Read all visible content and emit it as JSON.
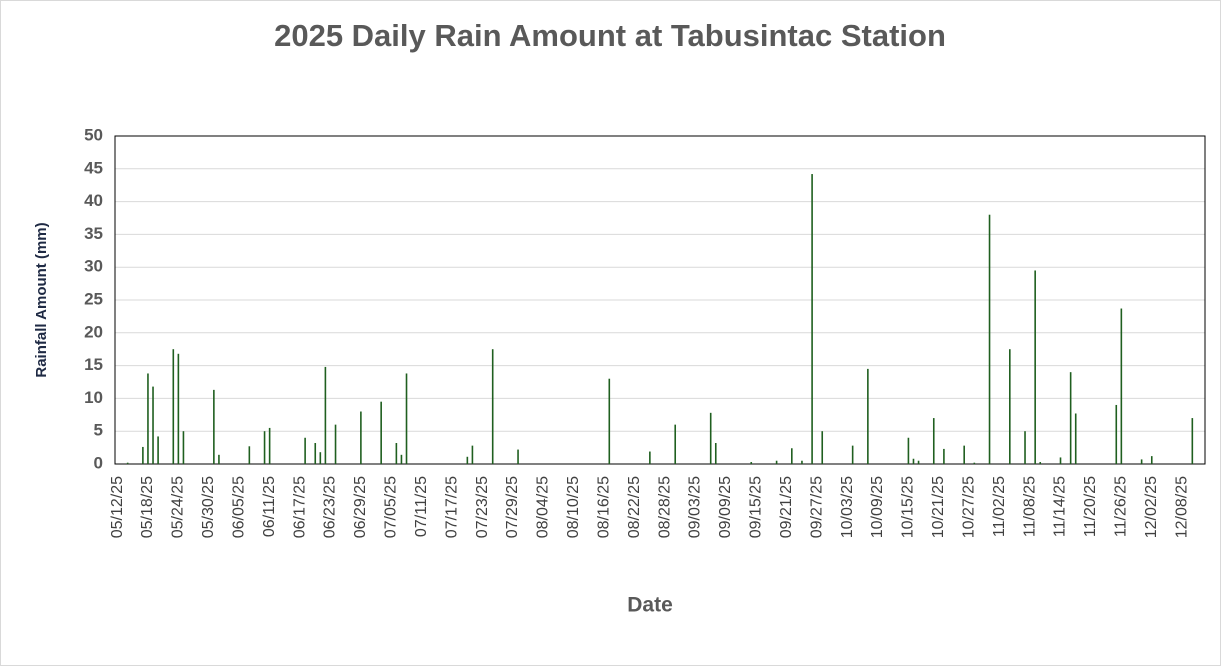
{
  "chart_data": {
    "type": "bar",
    "title": "2025 Daily Rain Amount at Tabusintac Station",
    "x_label": "Date",
    "y_label": "Rainfall Amount (mm)",
    "color": "#1f5f1f",
    "grid": true,
    "ylim": [
      0,
      50
    ],
    "yticks": [
      0,
      5,
      10,
      15,
      20,
      25,
      30,
      35,
      40,
      45,
      50
    ],
    "categories": [
      "05/12/25",
      null,
      null,
      null,
      null,
      null,
      "05/18/25",
      null,
      null,
      null,
      null,
      null,
      "05/24/25",
      null,
      null,
      null,
      null,
      null,
      "05/30/25",
      null,
      null,
      null,
      null,
      null,
      "06/05/25",
      null,
      null,
      null,
      null,
      null,
      "06/11/25",
      null,
      null,
      null,
      null,
      null,
      "06/17/25",
      null,
      null,
      null,
      null,
      null,
      "06/23/25",
      null,
      null,
      null,
      null,
      null,
      "06/29/25",
      null,
      null,
      null,
      null,
      null,
      "07/05/25",
      null,
      null,
      null,
      null,
      null,
      "07/11/25",
      null,
      null,
      null,
      null,
      null,
      "07/17/25",
      null,
      null,
      null,
      null,
      null,
      "07/23/25",
      null,
      null,
      null,
      null,
      null,
      "07/29/25",
      null,
      null,
      null,
      null,
      null,
      "08/04/25",
      null,
      null,
      null,
      null,
      null,
      "08/10/25",
      null,
      null,
      null,
      null,
      null,
      "08/16/25",
      null,
      null,
      null,
      null,
      null,
      "08/22/25",
      null,
      null,
      null,
      null,
      null,
      "08/28/25",
      null,
      null,
      null,
      null,
      null,
      "09/03/25",
      null,
      null,
      null,
      null,
      null,
      "09/09/25",
      null,
      null,
      null,
      null,
      null,
      "09/15/25",
      null,
      null,
      null,
      null,
      null,
      "09/21/25",
      null,
      null,
      null,
      null,
      null,
      "09/27/25",
      null,
      null,
      null,
      null,
      null,
      "10/03/25",
      null,
      null,
      null,
      null,
      null,
      "10/09/25",
      null,
      null,
      null,
      null,
      null,
      "10/15/25",
      null,
      null,
      null,
      null,
      null,
      "10/21/25",
      null,
      null,
      null,
      null,
      null,
      "10/27/25",
      null,
      null,
      null,
      null,
      null,
      "11/02/25",
      null,
      null,
      null,
      null,
      null,
      "11/08/25",
      null,
      null,
      null,
      null,
      null,
      "11/14/25",
      null,
      null,
      null,
      null,
      null,
      "11/20/25",
      null,
      null,
      null,
      null,
      null,
      "11/26/25",
      null,
      null,
      null,
      null,
      null,
      "12/02/25",
      null,
      null,
      null,
      null,
      null,
      "12/08/25",
      null,
      null,
      null,
      null
    ],
    "values": [
      0,
      0,
      0.2,
      0,
      0,
      2.6,
      13.8,
      11.8,
      4.2,
      0,
      0,
      17.5,
      16.8,
      5,
      0,
      0,
      0,
      0,
      0,
      11.3,
      1.4,
      0,
      0,
      0,
      0,
      0,
      2.7,
      0,
      0,
      5,
      5.5,
      0,
      0,
      0,
      0,
      0,
      0,
      4,
      0,
      3.2,
      1.8,
      14.8,
      0,
      6,
      0,
      0,
      0,
      0,
      8,
      0,
      0,
      0,
      9.5,
      0,
      0,
      3.2,
      1.4,
      13.8,
      0,
      0,
      0,
      0,
      0,
      0,
      0,
      0,
      0,
      0,
      0,
      1.1,
      2.8,
      0,
      0,
      0,
      17.5,
      0,
      0,
      0,
      0,
      2.2,
      0,
      0,
      0,
      0,
      0,
      0,
      0,
      0,
      0,
      0,
      0,
      0,
      0,
      0,
      0,
      0,
      0,
      13,
      0,
      0,
      0,
      0,
      0,
      0,
      0,
      1.9,
      0,
      0,
      0,
      0,
      6,
      0,
      0,
      0,
      0,
      0,
      0,
      7.8,
      3.2,
      0,
      0,
      0,
      0,
      0,
      0,
      0.3,
      0,
      0,
      0,
      0,
      0.5,
      0,
      0,
      2.4,
      0,
      0.5,
      0,
      44.2,
      0,
      5,
      0,
      0,
      0,
      0,
      0,
      2.8,
      0,
      0,
      14.5,
      0,
      0,
      0,
      0,
      0,
      0,
      0,
      4,
      0.8,
      0.5,
      0,
      0,
      7,
      0,
      2.3,
      0,
      0,
      0,
      2.8,
      0,
      0.2,
      0,
      0,
      38,
      0,
      0,
      0,
      17.5,
      0,
      0,
      5,
      0,
      29.5,
      0.3,
      0,
      0,
      0,
      1,
      0,
      14,
      7.7,
      0,
      0,
      0,
      0,
      0,
      0,
      0,
      9,
      23.7,
      0,
      0,
      0,
      0.7,
      0,
      1.2,
      0,
      0,
      0,
      0,
      0,
      0,
      0,
      7,
      0,
      0
    ]
  }
}
